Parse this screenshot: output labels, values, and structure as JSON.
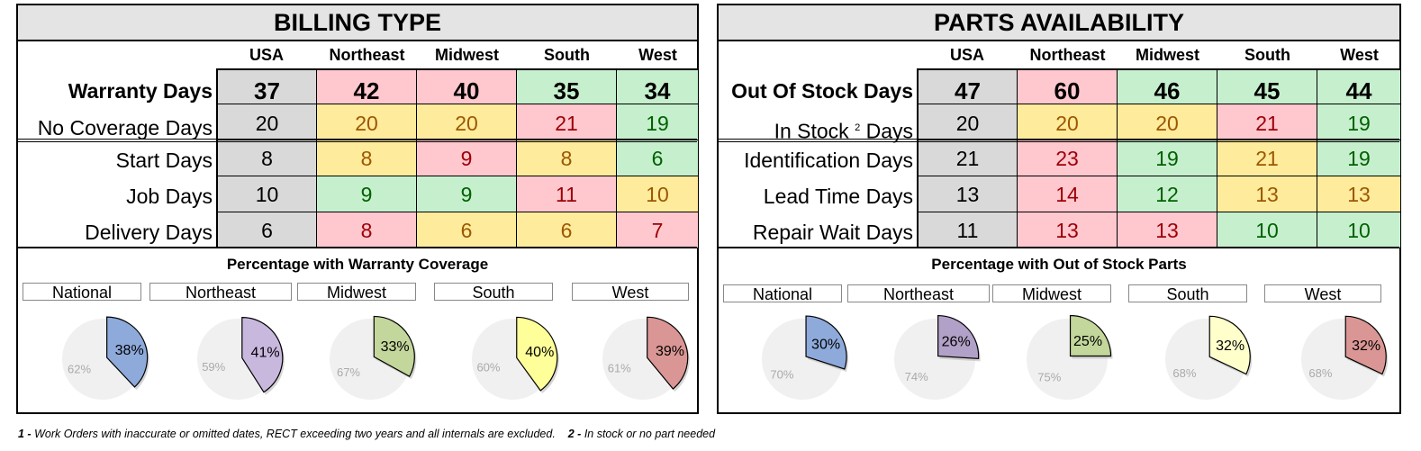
{
  "panels": [
    {
      "title": "BILLING TYPE",
      "columns": [
        "USA",
        "Northeast",
        "Midwest",
        "South",
        "West"
      ],
      "rows": [
        {
          "label": "Warranty Days",
          "bold": true,
          "cells": [
            [
              "37",
              "grey"
            ],
            [
              "42",
              "red"
            ],
            [
              "40",
              "red"
            ],
            [
              "35",
              "green"
            ],
            [
              "34",
              "green"
            ]
          ]
        },
        {
          "label": "No Coverage Days",
          "bold": false,
          "cells": [
            [
              "20",
              "grey"
            ],
            [
              "20",
              "yellow"
            ],
            [
              "20",
              "yellow"
            ],
            [
              "21",
              "red"
            ],
            [
              "19",
              "green"
            ]
          ]
        },
        {
          "label": "Start Days",
          "bold": false,
          "cells": [
            [
              "8",
              "grey"
            ],
            [
              "8",
              "yellow"
            ],
            [
              "9",
              "red"
            ],
            [
              "8",
              "yellow"
            ],
            [
              "6",
              "green"
            ]
          ]
        },
        {
          "label": "Job Days",
          "bold": false,
          "cells": [
            [
              "10",
              "grey"
            ],
            [
              "9",
              "green"
            ],
            [
              "9",
              "green"
            ],
            [
              "11",
              "red"
            ],
            [
              "10",
              "yellow"
            ]
          ]
        },
        {
          "label": "Delivery Days",
          "bold": false,
          "cells": [
            [
              "6",
              "grey"
            ],
            [
              "8",
              "red"
            ],
            [
              "6",
              "yellow"
            ],
            [
              "6",
              "yellow"
            ],
            [
              "7",
              "red"
            ]
          ]
        }
      ],
      "pie_title": "Percentage with Warranty Coverage",
      "pies": [
        {
          "region": "National",
          "pct": 38,
          "label": "38%",
          "rest": "62%",
          "color": "#8eaadb"
        },
        {
          "region": "Northeast",
          "pct": 41,
          "label": "41%",
          "rest": "59%",
          "color": "#c9b8de"
        },
        {
          "region": "Midwest",
          "pct": 33,
          "label": "33%",
          "rest": "67%",
          "color": "#c3d69b"
        },
        {
          "region": "South",
          "pct": 40,
          "label": "40%",
          "rest": "60%",
          "color": "#ffff99"
        },
        {
          "region": "West",
          "pct": 39,
          "label": "39%",
          "rest": "61%",
          "color": "#da9694"
        }
      ]
    },
    {
      "title": "PARTS AVAILABILITY",
      "columns": [
        "USA",
        "Northeast",
        "Midwest",
        "South",
        "West"
      ],
      "rows": [
        {
          "label": "Out Of Stock Days",
          "bold": true,
          "cells": [
            [
              "47",
              "grey"
            ],
            [
              "60",
              "red"
            ],
            [
              "46",
              "green"
            ],
            [
              "45",
              "green"
            ],
            [
              "44",
              "green"
            ]
          ]
        },
        {
          "label": "In Stock",
          "sup": "2",
          "label_suffix": "Days",
          "bold": false,
          "cells": [
            [
              "20",
              "grey"
            ],
            [
              "20",
              "yellow"
            ],
            [
              "20",
              "yellow"
            ],
            [
              "21",
              "red"
            ],
            [
              "19",
              "green"
            ]
          ]
        },
        {
          "label": "Identification Days",
          "bold": false,
          "cells": [
            [
              "21",
              "grey"
            ],
            [
              "23",
              "red"
            ],
            [
              "19",
              "green"
            ],
            [
              "21",
              "yellow"
            ],
            [
              "19",
              "green"
            ]
          ]
        },
        {
          "label": "Lead Time Days",
          "bold": false,
          "cells": [
            [
              "13",
              "grey"
            ],
            [
              "14",
              "red"
            ],
            [
              "12",
              "green"
            ],
            [
              "13",
              "yellow"
            ],
            [
              "13",
              "yellow"
            ]
          ]
        },
        {
          "label": "Repair Wait Days",
          "bold": false,
          "cells": [
            [
              "11",
              "grey"
            ],
            [
              "13",
              "red"
            ],
            [
              "13",
              "red"
            ],
            [
              "10",
              "green"
            ],
            [
              "10",
              "green"
            ]
          ]
        }
      ],
      "pie_title": "Percentage with Out of Stock Parts",
      "pies": [
        {
          "region": "National",
          "pct": 30,
          "label": "30%",
          "rest": "70%",
          "color": "#8eaadb"
        },
        {
          "region": "Northeast",
          "pct": 26,
          "label": "26%",
          "rest": "74%",
          "color": "#b1a0c7"
        },
        {
          "region": "Midwest",
          "pct": 25,
          "label": "25%",
          "rest": "75%",
          "color": "#c3d69b"
        },
        {
          "region": "South",
          "pct": 32,
          "label": "32%",
          "rest": "68%",
          "color": "#ffffcc"
        },
        {
          "region": "West",
          "pct": 32,
          "label": "32%",
          "rest": "68%",
          "color": "#da9694"
        }
      ]
    }
  ],
  "footer": {
    "n1": "1 -",
    "t1": "Work Orders with inaccurate or omitted dates, RECT exceeding two years and all internals are excluded.",
    "n2": "2 -",
    "t2": "In stock or no part needed"
  }
}
